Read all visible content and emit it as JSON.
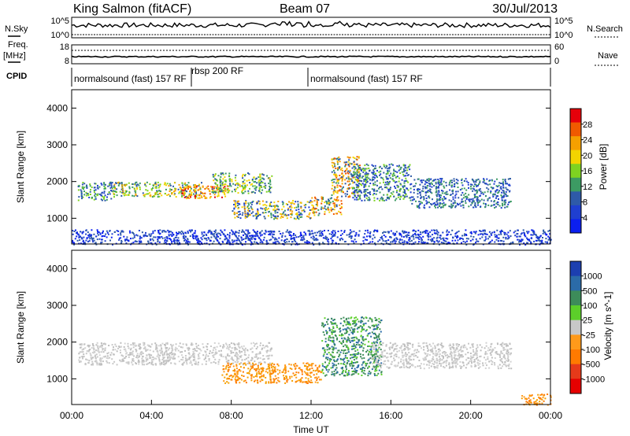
{
  "header": {
    "station": "King Salmon (fitACF)",
    "beam": "Beam 07",
    "date": "30/Jul/2013"
  },
  "left_labels": {
    "nsky": "N.Sky",
    "freq": "Freq.",
    "freq_unit": "[MHz]",
    "cpid": "CPID"
  },
  "right_labels": {
    "nsearch": "N.Search",
    "nave": "Nave"
  },
  "noise_axis": {
    "left_ticks": [
      "10^5",
      "10^0"
    ],
    "right_ticks": [
      "10^5",
      "10^0"
    ]
  },
  "freq_axis": {
    "left_ticks": [
      "18",
      "8"
    ],
    "right_ticks": [
      "60",
      "0"
    ]
  },
  "cpid_segments": [
    {
      "label": "normalsound (fast) 157 RF",
      "start": "00:00",
      "end": "06:00"
    },
    {
      "label": "rbsp 200 RF",
      "start": "06:00",
      "end": "12:00"
    },
    {
      "label": "normalsound (fast) 157 RF",
      "start": "12:00",
      "end": "24:00"
    }
  ],
  "x_axis": {
    "label": "Time UT",
    "ticks": [
      "00:00",
      "04:00",
      "08:00",
      "12:00",
      "16:00",
      "20:00",
      "00:00"
    ]
  },
  "y_axis": {
    "label": "Slant Range [km]",
    "ticks": [
      "1000",
      "2000",
      "3000",
      "4000"
    ]
  },
  "power_colorbar": {
    "label": "Power [dB]",
    "ticks": [
      "28",
      "24",
      "20",
      "16",
      "12",
      "8",
      "4"
    ],
    "colors": [
      "#e6000a",
      "#f05a00",
      "#f5a000",
      "#f3d400",
      "#7ed321",
      "#3c9b63",
      "#2e5aa8",
      "#1f3fd0",
      "#0b1ff0"
    ]
  },
  "velocity_colorbar": {
    "label": "Velocity [m s^-1]",
    "ticks": [
      "1000",
      "500",
      "100",
      "25",
      "-25",
      "-100",
      "-500",
      "-1000"
    ],
    "colors": [
      "#1c3fb0",
      "#2b6ba8",
      "#3d8c5a",
      "#5ccf2a",
      "#c8c8c8",
      "#ff9a1a",
      "#ff7a00",
      "#e63a1a",
      "#e60000"
    ]
  },
  "chart_data": [
    {
      "type": "heatmap",
      "title": "Power [dB]",
      "xlabel": "Time UT",
      "ylabel": "Slant Range [km]",
      "xlim": [
        0,
        24
      ],
      "ylim": [
        300,
        4500
      ],
      "regions": [
        {
          "t0": 0.3,
          "t1": 2.0,
          "r0": 1500,
          "r1": 2000,
          "level": "8-16"
        },
        {
          "t0": 2.0,
          "t1": 6.5,
          "r0": 1600,
          "r1": 2000,
          "level": "12-24"
        },
        {
          "t0": 5.5,
          "t1": 7.8,
          "r0": 1550,
          "r1": 1900,
          "level": "16-28"
        },
        {
          "t0": 7.0,
          "t1": 10.0,
          "r0": 1700,
          "r1": 2250,
          "level": "8-20"
        },
        {
          "t0": 8.0,
          "t1": 12.0,
          "r0": 1000,
          "r1": 1500,
          "level": "4-20"
        },
        {
          "t0": 12.0,
          "t1": 13.5,
          "r0": 1100,
          "r1": 1600,
          "level": "8-24"
        },
        {
          "t0": 13.0,
          "t1": 14.5,
          "r0": 1600,
          "r1": 2700,
          "level": "8-24"
        },
        {
          "t0": 14.0,
          "t1": 17.0,
          "r0": 1500,
          "r1": 2500,
          "level": "4-16"
        },
        {
          "t0": 17.0,
          "t1": 22.0,
          "r0": 1300,
          "r1": 2100,
          "level": "4-12"
        },
        {
          "t0": 0.0,
          "t1": 24.0,
          "r0": 300,
          "r1": 700,
          "level": "4-8"
        }
      ]
    },
    {
      "type": "heatmap",
      "title": "Velocity [m s^-1]",
      "xlabel": "Time UT",
      "ylabel": "Slant Range [km]",
      "xlim": [
        0,
        24
      ],
      "ylim": [
        300,
        4500
      ],
      "regions": [
        {
          "t0": 0.3,
          "t1": 10.0,
          "r0": 1400,
          "r1": 2000,
          "level": "-25..25"
        },
        {
          "t0": 7.5,
          "t1": 12.5,
          "r0": 900,
          "r1": 1450,
          "level": "-500..-100"
        },
        {
          "t0": 12.5,
          "t1": 15.5,
          "r0": 1100,
          "r1": 2700,
          "level": "100..500"
        },
        {
          "t0": 15.0,
          "t1": 22.0,
          "r0": 1300,
          "r1": 2000,
          "level": "-25..25"
        },
        {
          "t0": 22.5,
          "t1": 24.0,
          "r0": 300,
          "r1": 600,
          "level": "-500..-100"
        }
      ]
    }
  ]
}
